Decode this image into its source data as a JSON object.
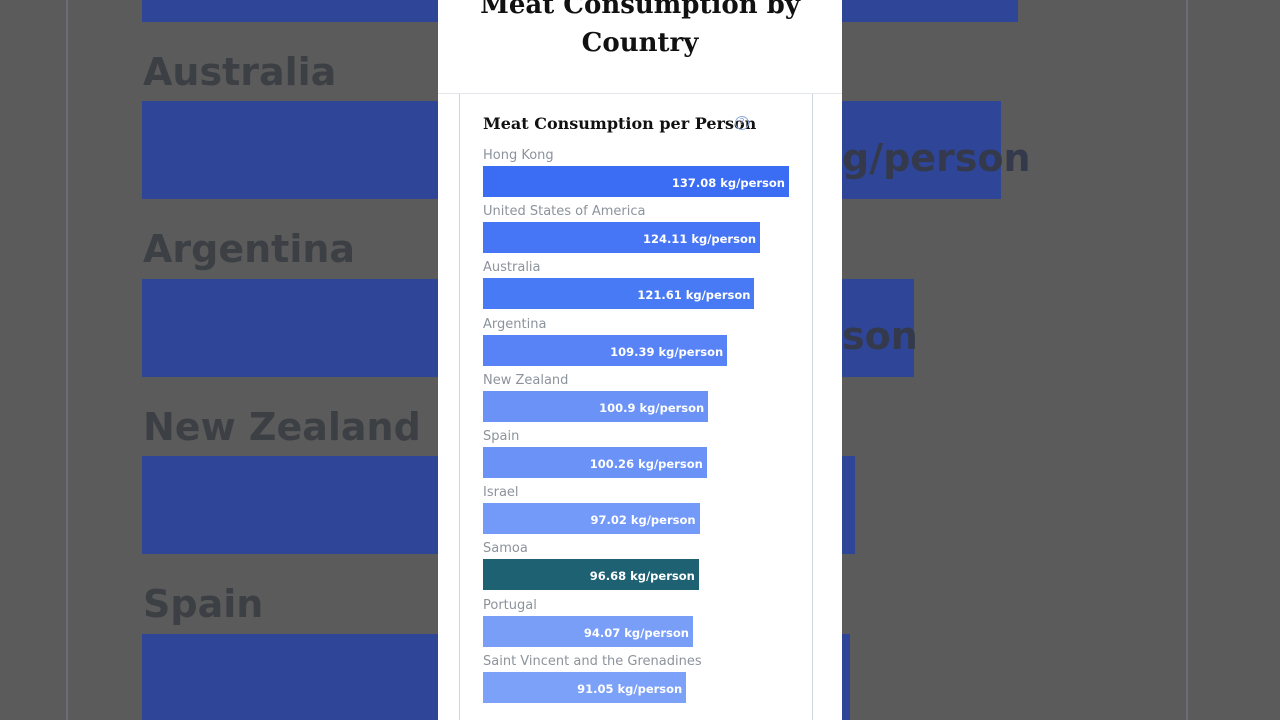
{
  "page_title": [
    "Meat Consumption by",
    "Country"
  ],
  "chart_data": {
    "type": "bar",
    "orientation": "horizontal",
    "title": "Meat Consumption per Person",
    "unit": "kg/person",
    "categories": [
      "Hong Kong",
      "United States of America",
      "Australia",
      "Argentina",
      "New Zealand",
      "Spain",
      "Israel",
      "Samoa",
      "Portugal",
      "Saint Vincent and the Grenadines"
    ],
    "values": [
      137.08,
      124.11,
      121.61,
      109.39,
      100.9,
      100.26,
      97.02,
      96.68,
      94.07,
      91.05
    ],
    "value_labels": [
      "137.08 kg/person",
      "124.11 kg/person",
      "121.61 kg/person",
      "109.39 kg/person",
      "100.9 kg/person",
      "100.26 kg/person",
      "97.02 kg/person",
      "96.68 kg/person",
      "94.07 kg/person",
      "91.05 kg/person"
    ],
    "colors": [
      "#3a6cf4",
      "#4676f5",
      "#487af5",
      "#5883f6",
      "#6a92f7",
      "#6b93f7",
      "#739af8",
      "#1e6173",
      "#789ef8",
      "#7ca1f9"
    ],
    "highlighted": "Samoa",
    "help_icon": "question-icon"
  },
  "background": {
    "labels": [
      "Australia",
      "Argentina",
      "New Zealand",
      "Spain"
    ],
    "bar_text_fragments": [
      "g/person",
      "son"
    ]
  }
}
